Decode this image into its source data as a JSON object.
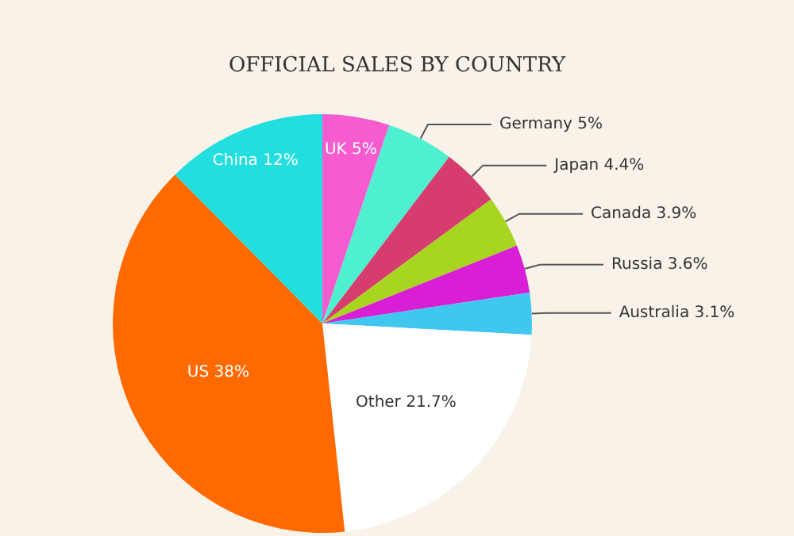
{
  "chart_data": {
    "type": "pie",
    "title": "OFFICIAL SALES BY COUNTRY",
    "categories": [
      "UK",
      "Germany",
      "Japan",
      "Canada",
      "Russia",
      "Australia",
      "Other",
      "US",
      "China"
    ],
    "values": [
      5,
      5,
      4.4,
      3.9,
      3.6,
      3.1,
      21.7,
      38,
      12
    ],
    "colors": [
      "#f65ccf",
      "#4ff0cf",
      "#d63d6e",
      "#a8d51f",
      "#d81fd5",
      "#3fc7f0",
      "#ffffff",
      "#ff6a00",
      "#23dede"
    ],
    "value_labels": [
      "5%",
      "5%",
      "4.4%",
      "3.9%",
      "3.6%",
      "3.1%",
      "21.7%",
      "38%",
      "12%"
    ],
    "legend": false
  }
}
